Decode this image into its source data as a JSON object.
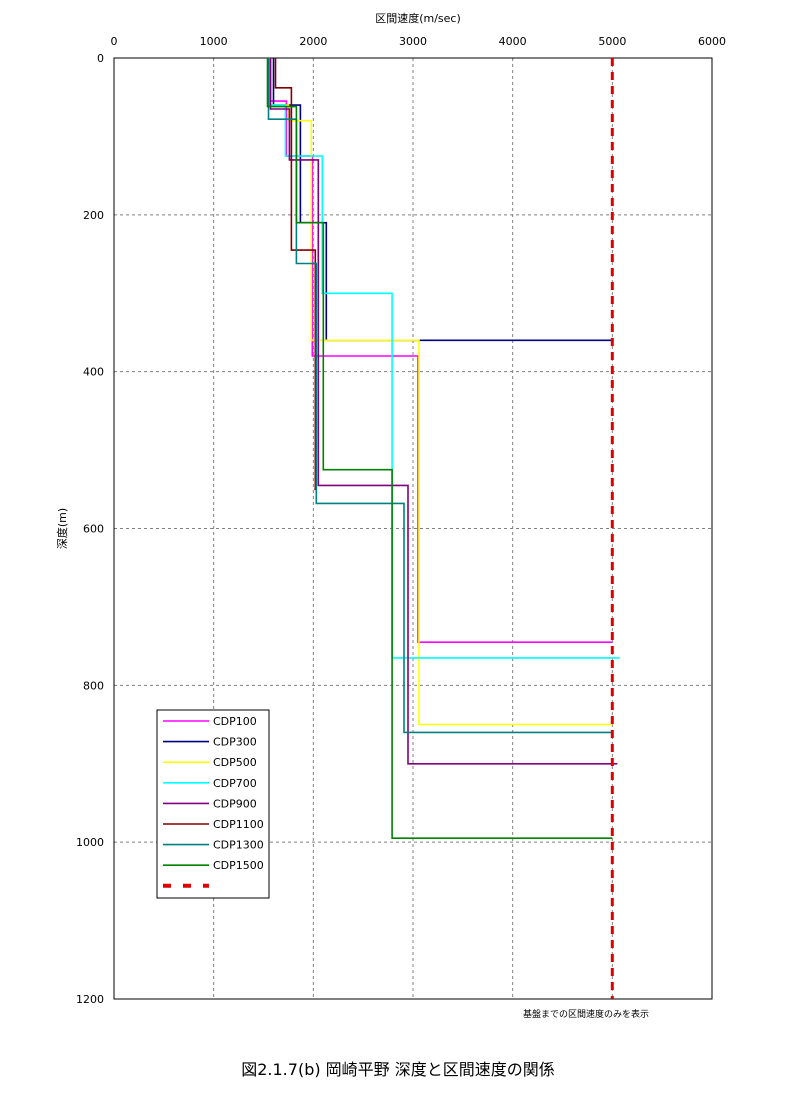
{
  "chart_data": {
    "type": "line",
    "xlabel": "区間速度(m/sec)",
    "ylabel": "深度(m)",
    "xlim": [
      0,
      6000
    ],
    "ylim": [
      0,
      1200
    ],
    "y_inverted": true,
    "x_axis_position": "top",
    "x_ticks": [
      0,
      1000,
      2000,
      3000,
      4000,
      5000,
      6000
    ],
    "y_ticks": [
      0,
      200,
      400,
      600,
      800,
      1000,
      1200
    ],
    "grid": true,
    "legend_position": "bottom-left",
    "note": "基盤までの区間速度のみを表示",
    "caption": "図2.1.7(b)  岡崎平野  深度と区間速度の関係",
    "series": [
      {
        "name": "CDP100",
        "color": "#ff00ff",
        "dash": false,
        "points": [
          [
            1570,
            0
          ],
          [
            1570,
            55
          ],
          [
            1730,
            55
          ],
          [
            1730,
            125
          ],
          [
            1990,
            125
          ],
          [
            1990,
            380
          ],
          [
            3050,
            380
          ],
          [
            3050,
            745
          ],
          [
            5000,
            745
          ],
          [
            5000,
            745
          ]
        ]
      },
      {
        "name": "CDP300",
        "color": "#000080",
        "dash": false,
        "points": [
          [
            1600,
            0
          ],
          [
            1600,
            60
          ],
          [
            1870,
            60
          ],
          [
            1870,
            210
          ],
          [
            2130,
            210
          ],
          [
            2130,
            360
          ],
          [
            5000,
            360
          ],
          [
            5000,
            360
          ]
        ]
      },
      {
        "name": "CDP500",
        "color": "#ffff00",
        "dash": false,
        "points": [
          [
            1560,
            0
          ],
          [
            1560,
            60
          ],
          [
            1750,
            60
          ],
          [
            1750,
            80
          ],
          [
            1980,
            80
          ],
          [
            1980,
            360
          ],
          [
            3060,
            360
          ],
          [
            3060,
            850
          ],
          [
            5000,
            850
          ],
          [
            5000,
            850
          ]
        ]
      },
      {
        "name": "CDP700",
        "color": "#00ffff",
        "dash": false,
        "points": [
          [
            1560,
            0
          ],
          [
            1560,
            60
          ],
          [
            1720,
            60
          ],
          [
            1720,
            125
          ],
          [
            2090,
            125
          ],
          [
            2090,
            300
          ],
          [
            2790,
            300
          ],
          [
            2790,
            765
          ],
          [
            5070,
            765
          ],
          [
            5070,
            765
          ]
        ]
      },
      {
        "name": "CDP900",
        "color": "#800080",
        "dash": false,
        "points": [
          [
            1570,
            0
          ],
          [
            1570,
            65
          ],
          [
            1760,
            65
          ],
          [
            1760,
            130
          ],
          [
            2050,
            130
          ],
          [
            2050,
            545
          ],
          [
            2950,
            545
          ],
          [
            2950,
            900
          ],
          [
            5050,
            900
          ],
          [
            5050,
            900
          ]
        ]
      },
      {
        "name": "CDP1100",
        "color": "#800000",
        "dash": false,
        "points": [
          [
            1620,
            0
          ],
          [
            1620,
            38
          ],
          [
            1780,
            38
          ],
          [
            1780,
            245
          ],
          [
            2020,
            245
          ],
          [
            2020,
            550
          ],
          [
            2010,
            550
          ]
        ]
      },
      {
        "name": "CDP1300",
        "color": "#008080",
        "dash": false,
        "points": [
          [
            1550,
            0
          ],
          [
            1550,
            78
          ],
          [
            1830,
            78
          ],
          [
            1830,
            262
          ],
          [
            2030,
            262
          ],
          [
            2030,
            568
          ],
          [
            2910,
            568
          ],
          [
            2910,
            860
          ],
          [
            5000,
            860
          ],
          [
            5000,
            860
          ]
        ]
      },
      {
        "name": "CDP1500",
        "color": "#008000",
        "dash": false,
        "points": [
          [
            1540,
            0
          ],
          [
            1540,
            62
          ],
          [
            1830,
            62
          ],
          [
            1830,
            210
          ],
          [
            2100,
            210
          ],
          [
            2100,
            525
          ],
          [
            2790,
            525
          ],
          [
            2790,
            995
          ],
          [
            5000,
            995
          ],
          [
            5000,
            995
          ]
        ]
      },
      {
        "name": "",
        "color": "#e00000",
        "dash": true,
        "points": [
          [
            5000,
            0
          ],
          [
            5000,
            1200
          ]
        ]
      }
    ]
  }
}
